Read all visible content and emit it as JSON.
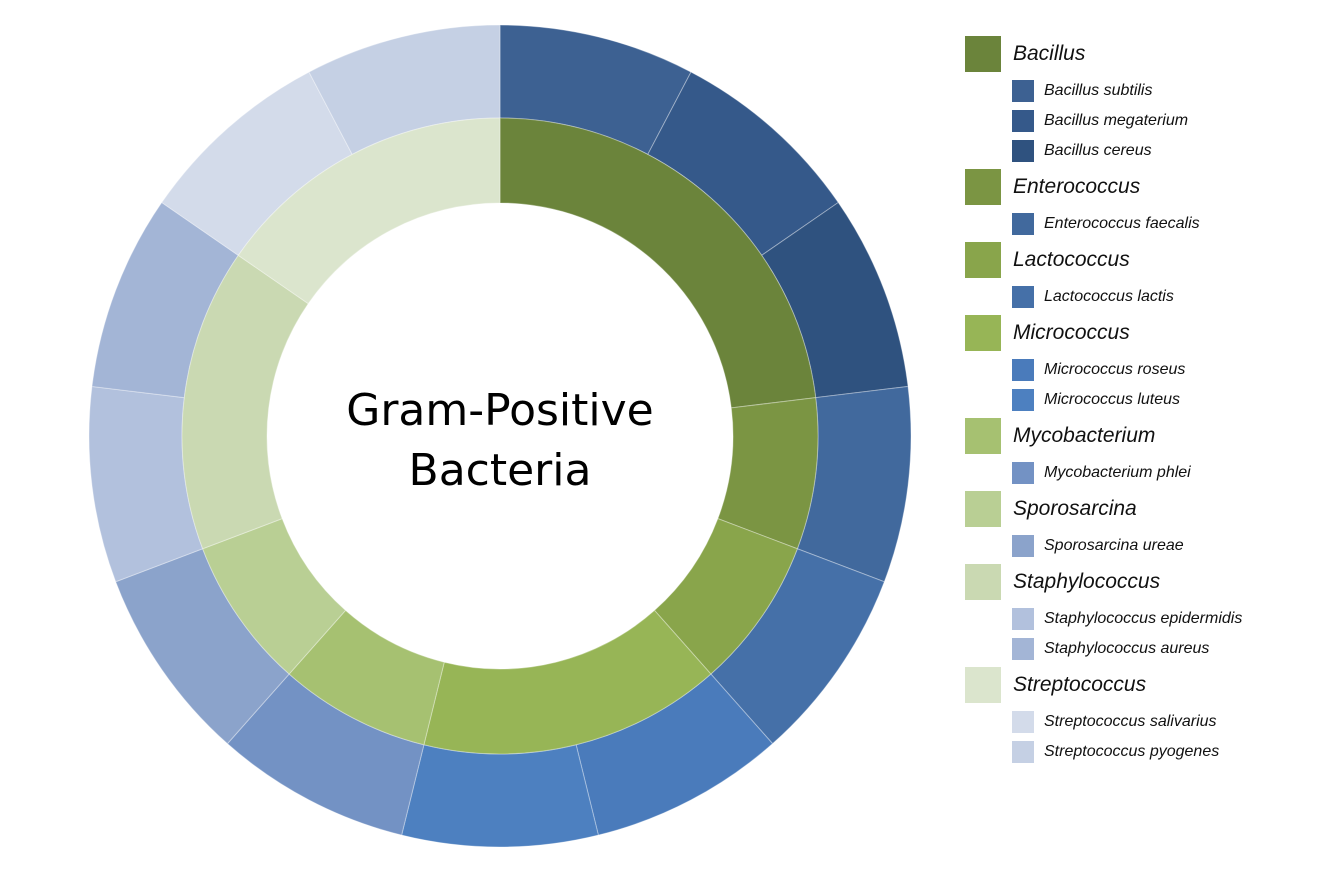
{
  "chart_data": {
    "type": "pie",
    "title": "Gram-Positive Bacteria",
    "title_lines": [
      "Gram-Positive",
      "Bacteria"
    ],
    "inner_ring": [
      {
        "name": "Bacillus",
        "value": 3,
        "color": "#6b843b"
      },
      {
        "name": "Enterococcus",
        "value": 1,
        "color": "#7b9543"
      },
      {
        "name": "Lactococcus",
        "value": 1,
        "color": "#89a54b"
      },
      {
        "name": "Micrococcus",
        "value": 2,
        "color": "#97b556"
      },
      {
        "name": "Mycobacterium",
        "value": 1,
        "color": "#a6c171"
      },
      {
        "name": "Sporosarcina",
        "value": 1,
        "color": "#b9cf94"
      },
      {
        "name": "Staphylococcus",
        "value": 2,
        "color": "#cad9b2"
      },
      {
        "name": "Streptococcus",
        "value": 2,
        "color": "#dbe5cd"
      }
    ],
    "outer_ring": [
      {
        "name": "Bacillus subtilis",
        "genus": "Bacillus",
        "value": 1,
        "color": "#3d6192"
      },
      {
        "name": "Bacillus megaterium",
        "genus": "Bacillus",
        "value": 1,
        "color": "#35598a"
      },
      {
        "name": "Bacillus cereus",
        "genus": "Bacillus",
        "value": 1,
        "color": "#2f527f"
      },
      {
        "name": "Enterococcus faecalis",
        "genus": "Enterococcus",
        "value": 1,
        "color": "#41699d"
      },
      {
        "name": "Lactococcus lactis",
        "genus": "Lactococcus",
        "value": 1,
        "color": "#4570a8"
      },
      {
        "name": "Micrococcus roseus",
        "genus": "Micrococcus",
        "value": 1,
        "color": "#4a7bbb"
      },
      {
        "name": "Micrococcus luteus",
        "genus": "Micrococcus",
        "value": 1,
        "color": "#4d80c0"
      },
      {
        "name": "Mycobacterium phlei",
        "genus": "Mycobacterium",
        "value": 1,
        "color": "#7392c4"
      },
      {
        "name": "Sporosarcina ureae",
        "genus": "Sporosarcina",
        "value": 1,
        "color": "#8ba3cb"
      },
      {
        "name": "Staphylococcus epidermidis",
        "genus": "Staphylococcus",
        "value": 1,
        "color": "#b2c1dd"
      },
      {
        "name": "Staphylococcus aureus",
        "genus": "Staphylococcus",
        "value": 1,
        "color": "#a3b5d6"
      },
      {
        "name": "Streptococcus salivarius",
        "genus": "Streptococcus",
        "value": 1,
        "color": "#d3dbea"
      },
      {
        "name": "Streptococcus pyogenes",
        "genus": "Streptococcus",
        "value": 1,
        "color": "#c5d0e4"
      }
    ],
    "legend": [
      {
        "genus": "Bacillus",
        "color": "#6b843b",
        "species": [
          {
            "name": "Bacillus subtilis",
            "color": "#3d6192"
          },
          {
            "name": "Bacillus megaterium",
            "color": "#35598a"
          },
          {
            "name": "Bacillus cereus",
            "color": "#2f527f"
          }
        ]
      },
      {
        "genus": "Enterococcus",
        "color": "#7b9543",
        "species": [
          {
            "name": "Enterococcus faecalis",
            "color": "#41699d"
          }
        ]
      },
      {
        "genus": "Lactococcus",
        "color": "#89a54b",
        "species": [
          {
            "name": "Lactococcus lactis",
            "color": "#4570a8"
          }
        ]
      },
      {
        "genus": "Micrococcus",
        "color": "#97b556",
        "species": [
          {
            "name": "Micrococcus roseus",
            "color": "#4a7bbb"
          },
          {
            "name": "Micrococcus luteus",
            "color": "#4d80c0"
          }
        ]
      },
      {
        "genus": "Mycobacterium",
        "color": "#a6c171",
        "species": [
          {
            "name": "Mycobacterium phlei",
            "color": "#7392c4"
          }
        ]
      },
      {
        "genus": "Sporosarcina",
        "color": "#b9cf94",
        "species": [
          {
            "name": "Sporosarcina ureae",
            "color": "#8ba3cb"
          }
        ]
      },
      {
        "genus": "Staphylococcus",
        "color": "#cad9b2",
        "species": [
          {
            "name": "Staphylococcus epidermidis",
            "color": "#b2c1dd"
          },
          {
            "name": "Staphylococcus aureus",
            "color": "#a3b5d6"
          }
        ]
      },
      {
        "genus": "Streptococcus",
        "color": "#dbe5cd",
        "species": [
          {
            "name": "Streptococcus salivarius",
            "color": "#d3dbea"
          },
          {
            "name": "Streptococcus pyogenes",
            "color": "#c5d0e4"
          }
        ]
      }
    ],
    "legend_placement": "right"
  }
}
